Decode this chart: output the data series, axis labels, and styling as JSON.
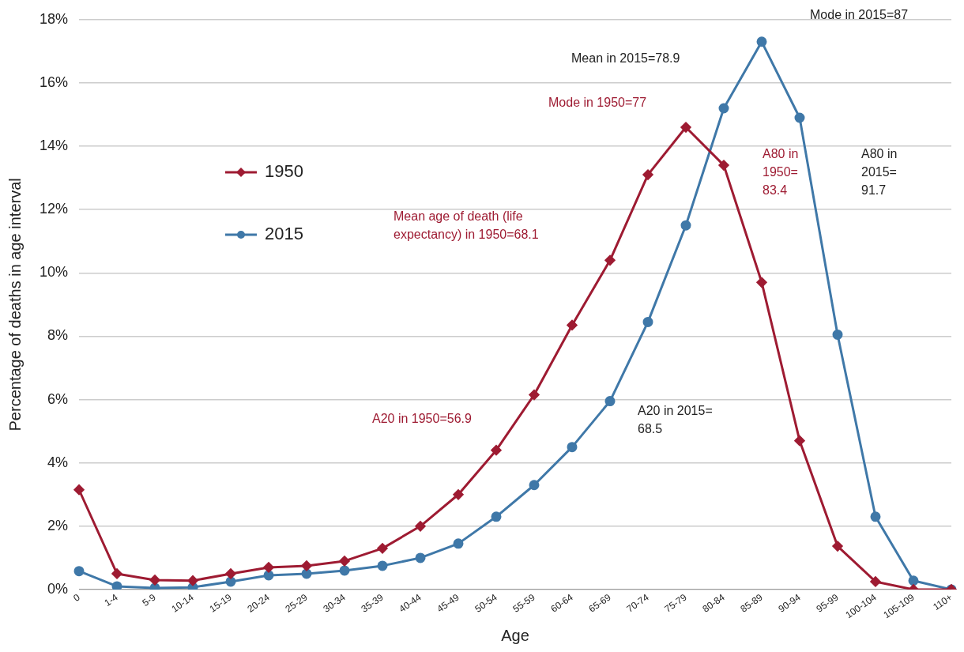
{
  "chart_data": {
    "type": "line",
    "xlabel": "Age",
    "ylabel": "Percentage of deaths in age interval",
    "categories": [
      "0",
      "1-4",
      "5-9",
      "10-14",
      "15-19",
      "20-24",
      "25-29",
      "30-34",
      "35-39",
      "40-44",
      "45-49",
      "50-54",
      "55-59",
      "60-64",
      "65-69",
      "70-74",
      "75-79",
      "80-84",
      "85-89",
      "90-94",
      "95-99",
      "100-104",
      "105-109",
      "110+"
    ],
    "series": [
      {
        "name": "1950",
        "color": "#9e1b32",
        "marker": "diamond",
        "values": [
          3.15,
          0.5,
          0.3,
          0.28,
          0.5,
          0.7,
          0.75,
          0.9,
          1.3,
          2.0,
          3.0,
          4.4,
          6.15,
          8.35,
          10.4,
          13.1,
          14.6,
          13.4,
          9.7,
          4.7,
          1.37,
          0.25,
          0,
          0
        ]
      },
      {
        "name": "2015",
        "color": "#3f78a8",
        "marker": "circle",
        "values": [
          0.58,
          0.1,
          0.05,
          0.07,
          0.25,
          0.45,
          0.5,
          0.6,
          0.75,
          1.0,
          1.45,
          2.3,
          3.3,
          4.5,
          5.95,
          8.45,
          11.5,
          15.2,
          17.3,
          14.9,
          8.05,
          2.3,
          0.28,
          0
        ]
      }
    ],
    "ylim": [
      0,
      18
    ],
    "yticks": [
      {
        "value": 0,
        "label": "0%"
      },
      {
        "value": 2,
        "label": "2%"
      },
      {
        "value": 4,
        "label": "4%"
      },
      {
        "value": 6,
        "label": "6%"
      },
      {
        "value": 8,
        "label": "8%"
      },
      {
        "value": 10,
        "label": "10%"
      },
      {
        "value": 12,
        "label": "12%"
      },
      {
        "value": 14,
        "label": "14%"
      },
      {
        "value": 16,
        "label": "16%"
      },
      {
        "value": 18,
        "label": "18%"
      }
    ],
    "grid": "y",
    "legend": "left",
    "line_style": "solid",
    "annotations": [
      "Mean in 2015=78.9",
      "Mode in 2015=87",
      "Mode in 1950=77",
      "A80 in\n1950=\n83.4",
      "A80 in\n2015=\n91.7",
      "Mean age of death (life\nexpectancy) in 1950=68.1",
      "A20 in 1950=56.9",
      "A20 in 2015=\n68.5"
    ]
  }
}
